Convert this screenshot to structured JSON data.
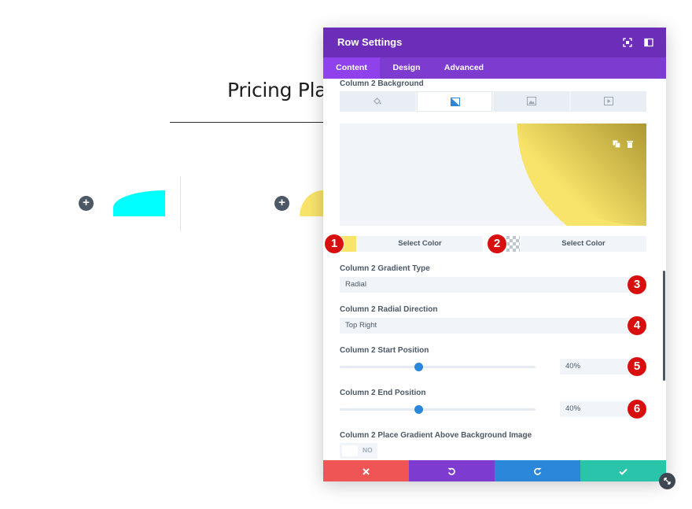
{
  "page": {
    "title": "Pricing Plan",
    "add_icon": "plus-icon"
  },
  "modal": {
    "title": "Row Settings",
    "tabs": [
      {
        "label": "Content",
        "active": true
      },
      {
        "label": "Design",
        "active": false
      },
      {
        "label": "Advanced",
        "active": false
      }
    ],
    "background": {
      "label": "Column 2 Background",
      "tab_icons": [
        "paint-bucket-icon",
        "gradient-icon",
        "image-icon",
        "video-icon"
      ],
      "active_tab": 1
    },
    "gradient": {
      "color1": "#f9e46b",
      "color2": "transparent",
      "select_color_1": "Select Color",
      "select_color_2": "Select Color",
      "type_label": "Column 2 Gradient Type",
      "type_value": "Radial",
      "direction_label": "Column 2 Radial Direction",
      "direction_value": "Top Right",
      "start_label": "Column 2 Start Position",
      "start_value": "40%",
      "end_label": "Column 2 End Position",
      "end_value": "40%",
      "above_label": "Column 2 Place Gradient Above Background Image",
      "above_value": "NO"
    },
    "badges": [
      "1",
      "2",
      "3",
      "4",
      "5",
      "6"
    ],
    "footer": {
      "cancel_icon": "close-icon",
      "undo_icon": "undo-icon",
      "redo_icon": "redo-icon",
      "save_icon": "check-icon"
    }
  },
  "colors": {
    "header": "#6c2eb9",
    "tabs": "#7e3bd0",
    "cancel": "#ef5555",
    "undo": "#7e3bd0",
    "redo": "#2b87da",
    "save": "#29c4a9",
    "badge": "#d70f0f",
    "cyan": "#00ffff",
    "yellow": "#f9e46b"
  }
}
